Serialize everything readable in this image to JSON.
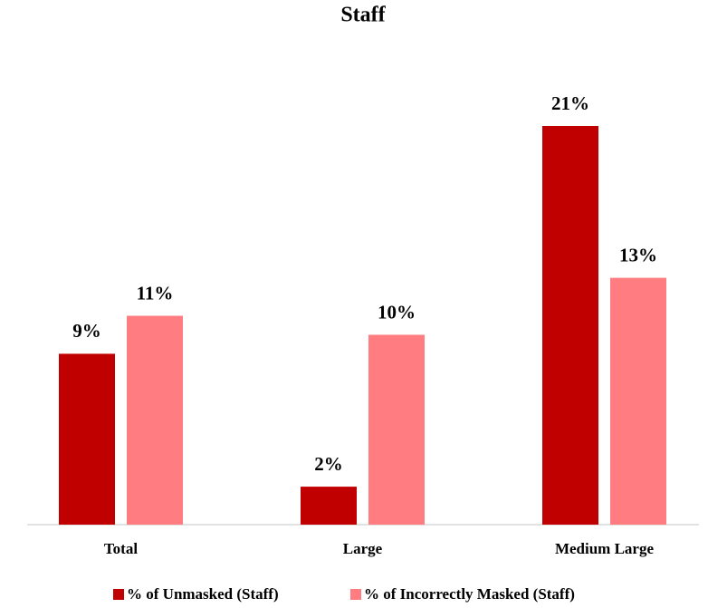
{
  "chart_data": {
    "type": "bar",
    "title": "Staff",
    "categories": [
      "Total",
      "Large",
      "Medium Large"
    ],
    "series": [
      {
        "name": "% of Unmasked (Staff)",
        "color": "#c00000",
        "values": [
          9,
          2,
          21
        ],
        "value_labels": [
          "9%",
          "2%",
          "21%"
        ]
      },
      {
        "name": "% of Incorrectly Masked (Staff)",
        "color": "#ff7c80",
        "values": [
          11,
          10,
          13
        ],
        "value_labels": [
          "11%",
          "10%",
          "13%"
        ]
      }
    ],
    "legend": "bottom"
  }
}
